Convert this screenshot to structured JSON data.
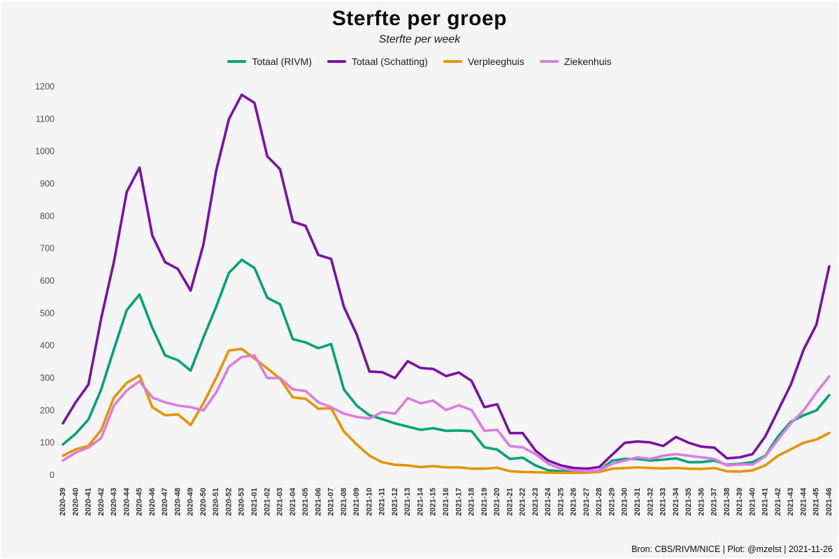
{
  "figure": {
    "title": "Sterfte per groep",
    "subtitle": "Sterfte per week",
    "caption": "Bron: CBS/RIVM/NICE | Plot: @mzelst  |  2021-11-26",
    "background_color": "#f5f5f5"
  },
  "chart_data": {
    "type": "line",
    "title": "Sterfte per groep",
    "subtitle": "Sterfte per week",
    "xlabel": "",
    "ylabel": "",
    "ylim": [
      0,
      1200
    ],
    "y_ticks": [
      0,
      100,
      200,
      300,
      400,
      500,
      600,
      700,
      800,
      900,
      1000,
      1100,
      1200
    ],
    "grid": false,
    "legend_position": "top",
    "x_tick_labels": [
      "2020-39",
      "2020-40",
      "2020-41",
      "2020-42",
      "2020-43",
      "2020-44",
      "2020-45",
      "2020-46",
      "2020-47",
      "2020-48",
      "2020-49",
      "2020-50",
      "2020-51",
      "2020-52",
      "2020-53",
      "2021-01",
      "2021-02",
      "2021-03",
      "2021-04",
      "2021-05",
      "2021-06",
      "2021-07",
      "2021-08",
      "2021-09",
      "2021-10",
      "2021-11",
      "2021-12",
      "2021-13",
      "2021-14",
      "2021-15",
      "2021-16",
      "2021-17",
      "2021-18",
      "2021-19",
      "2021-20",
      "2021-21",
      "2021-22",
      "2021-23",
      "2021-24",
      "2021-25",
      "2021-26",
      "2021-27",
      "2021-28",
      "2021-29",
      "2021-30",
      "2021-31",
      "2021-32",
      "2021-33",
      "2021-34",
      "2021-35",
      "2021-36",
      "2021-37",
      "2021-38",
      "2021-39",
      "2021-40",
      "2021-41",
      "2021-42",
      "2021-43",
      "2021-44",
      "2021-45",
      "2021-46"
    ],
    "series": [
      {
        "name": "Totaal (RIVM)",
        "color": "#00A377",
        "values": [
          95,
          128,
          172,
          265,
          390,
          510,
          558,
          455,
          370,
          355,
          323,
          425,
          520,
          625,
          665,
          640,
          548,
          528,
          420,
          410,
          392,
          405,
          265,
          215,
          185,
          173,
          160,
          150,
          140,
          145,
          137,
          138,
          136,
          86,
          79,
          50,
          54,
          30,
          15,
          12,
          10,
          12,
          14,
          45,
          50,
          50,
          45,
          48,
          52,
          40,
          40,
          45,
          32,
          35,
          40,
          60,
          120,
          165,
          185,
          200,
          247
        ]
      },
      {
        "name": "Totaal (Schatting)",
        "color": "#7A10A5",
        "values": [
          160,
          225,
          280,
          485,
          660,
          875,
          950,
          740,
          658,
          637,
          570,
          712,
          940,
          1100,
          1175,
          1150,
          985,
          945,
          783,
          770,
          680,
          668,
          520,
          435,
          320,
          318,
          300,
          352,
          331,
          328,
          306,
          317,
          291,
          210,
          219,
          130,
          130,
          76,
          45,
          30,
          22,
          20,
          25,
          63,
          100,
          104,
          101,
          90,
          118,
          100,
          88,
          85,
          52,
          55,
          65,
          120,
          200,
          280,
          388,
          465,
          645
        ]
      },
      {
        "name": "Verpleeghuis",
        "color": "#E69500",
        "values": [
          60,
          80,
          90,
          140,
          240,
          285,
          308,
          210,
          185,
          188,
          155,
          222,
          300,
          385,
          390,
          360,
          330,
          298,
          240,
          236,
          205,
          207,
          135,
          95,
          60,
          40,
          32,
          30,
          25,
          28,
          24,
          24,
          20,
          20,
          23,
          12,
          10,
          9,
          8,
          7,
          7,
          8,
          10,
          20,
          22,
          24,
          22,
          21,
          22,
          20,
          19,
          22,
          12,
          11,
          15,
          30,
          60,
          80,
          100,
          110,
          130
        ]
      },
      {
        "name": "Ziekenhuis",
        "color": "#DB7DE0",
        "values": [
          45,
          70,
          85,
          115,
          215,
          262,
          290,
          240,
          225,
          215,
          210,
          200,
          255,
          335,
          365,
          370,
          300,
          300,
          265,
          260,
          225,
          210,
          190,
          180,
          175,
          195,
          190,
          238,
          222,
          230,
          201,
          216,
          201,
          137,
          140,
          90,
          86,
          65,
          35,
          20,
          15,
          13,
          14,
          35,
          45,
          55,
          50,
          60,
          65,
          60,
          55,
          50,
          30,
          33,
          33,
          58,
          110,
          160,
          200,
          255,
          305
        ]
      }
    ]
  }
}
